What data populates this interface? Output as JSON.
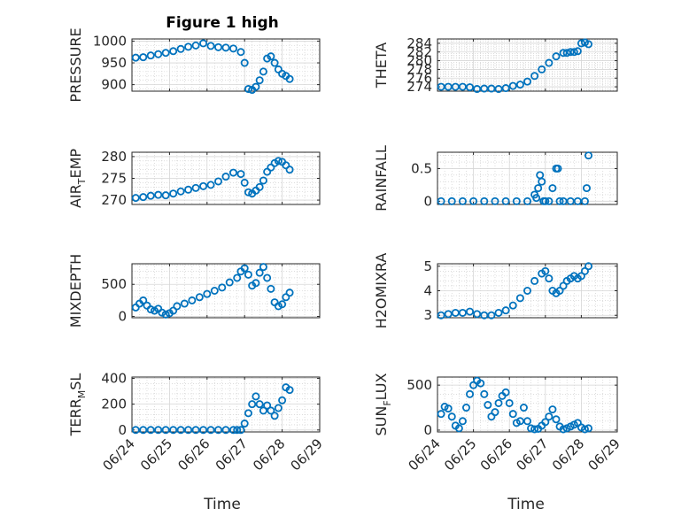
{
  "figure": {
    "title": "Figure 1 high",
    "xlabel": "Time",
    "marker_color": "#0072BD"
  },
  "chart_data": [
    {
      "type": "scatter",
      "id": "pressure",
      "ylabel": "PRESSURE",
      "xlim": [
        0,
        5
      ],
      "ylim": [
        885,
        1005
      ],
      "yticks": [
        900,
        950,
        1000
      ],
      "yticklabels": [
        "900",
        "950",
        "1000"
      ],
      "xticks": [
        0,
        1,
        2,
        3,
        4,
        5
      ],
      "xticklabels": [],
      "grid": true,
      "x": [
        0.1,
        0.3,
        0.5,
        0.7,
        0.9,
        1.1,
        1.3,
        1.5,
        1.7,
        1.9,
        2.1,
        2.3,
        2.5,
        2.7,
        2.9,
        3.0,
        3.1,
        3.2,
        3.3,
        3.4,
        3.5,
        3.6,
        3.7,
        3.8,
        3.9,
        4.0,
        4.1,
        4.2
      ],
      "y": [
        962,
        963,
        967,
        970,
        973,
        977,
        982,
        987,
        990,
        995,
        989,
        986,
        985,
        983,
        975,
        950,
        890,
        888,
        895,
        910,
        930,
        960,
        965,
        950,
        935,
        925,
        920,
        913
      ]
    },
    {
      "type": "scatter",
      "id": "theta",
      "ylabel": "THETA",
      "xlim": [
        0,
        5
      ],
      "ylim": [
        273,
        285
      ],
      "yticks": [
        274,
        276,
        278,
        280,
        282,
        284
      ],
      "yticklabels": [
        "274",
        "276",
        "278",
        "280",
        "282",
        "284"
      ],
      "xticks": [
        0,
        1,
        2,
        3,
        4,
        5
      ],
      "xticklabels": [],
      "grid": true,
      "x": [
        0.1,
        0.3,
        0.5,
        0.7,
        0.9,
        1.1,
        1.3,
        1.5,
        1.7,
        1.9,
        2.1,
        2.3,
        2.5,
        2.7,
        2.9,
        3.1,
        3.3,
        3.5,
        3.6,
        3.7,
        3.8,
        3.9,
        4.0,
        4.1,
        4.2
      ],
      "y": [
        274.0,
        274.0,
        274.0,
        274.0,
        273.9,
        273.5,
        273.6,
        273.6,
        273.5,
        273.7,
        274.2,
        274.5,
        275.2,
        276.5,
        278.0,
        279.5,
        281.0,
        281.8,
        281.8,
        282.0,
        282.0,
        282.2,
        284.0,
        284.2,
        283.8
      ]
    },
    {
      "type": "scatter",
      "id": "air_temp",
      "ylabel": "AIR_TEMP",
      "xlim": [
        0,
        5
      ],
      "ylim": [
        269,
        281
      ],
      "yticks": [
        270,
        275,
        280
      ],
      "yticklabels": [
        "270",
        "275",
        "280"
      ],
      "xticks": [
        0,
        1,
        2,
        3,
        4,
        5
      ],
      "xticklabels": [],
      "grid": true,
      "x": [
        0.1,
        0.3,
        0.5,
        0.7,
        0.9,
        1.1,
        1.3,
        1.5,
        1.7,
        1.9,
        2.1,
        2.3,
        2.5,
        2.7,
        2.9,
        3.0,
        3.1,
        3.2,
        3.3,
        3.4,
        3.5,
        3.6,
        3.7,
        3.8,
        3.9,
        4.0,
        4.1,
        4.2
      ],
      "y": [
        270.5,
        270.7,
        271.0,
        271.2,
        271.1,
        271.5,
        272.0,
        272.4,
        272.8,
        273.2,
        273.5,
        274.3,
        275.4,
        276.3,
        276.0,
        274.0,
        271.8,
        271.5,
        272.2,
        273.0,
        274.5,
        276.5,
        277.5,
        278.5,
        279.0,
        278.8,
        278.0,
        277.0
      ]
    },
    {
      "type": "scatter",
      "id": "rainfall",
      "ylabel": "RAINFALL",
      "xlim": [
        0,
        5
      ],
      "ylim": [
        -0.05,
        0.75
      ],
      "yticks": [
        0,
        0.5
      ],
      "yticklabels": [
        "0",
        "0.5"
      ],
      "xticks": [
        0,
        1,
        2,
        3,
        4,
        5
      ],
      "xticklabels": [],
      "grid": true,
      "x": [
        0.1,
        0.4,
        0.7,
        1.0,
        1.3,
        1.6,
        1.9,
        2.2,
        2.5,
        2.7,
        2.75,
        2.8,
        2.85,
        2.9,
        2.95,
        3.0,
        3.1,
        3.2,
        3.3,
        3.35,
        3.4,
        3.5,
        3.7,
        3.9,
        4.1,
        4.15,
        4.2
      ],
      "y": [
        0,
        0,
        0,
        0,
        0,
        0,
        0,
        0,
        0,
        0.1,
        0.05,
        0.2,
        0.4,
        0.3,
        0,
        0,
        0,
        0.2,
        0.5,
        0.5,
        0,
        0,
        0,
        0,
        0,
        0.2,
        0.7
      ]
    },
    {
      "type": "scatter",
      "id": "mixdepth",
      "ylabel": "MIXDEPTH",
      "xlim": [
        0,
        5
      ],
      "ylim": [
        -20,
        820
      ],
      "yticks": [
        0,
        500
      ],
      "yticklabels": [
        "0",
        "500"
      ],
      "xticks": [
        0,
        1,
        2,
        3,
        4,
        5
      ],
      "xticklabels": [],
      "grid": true,
      "x": [
        0.1,
        0.2,
        0.3,
        0.4,
        0.5,
        0.6,
        0.7,
        0.8,
        0.9,
        1.0,
        1.1,
        1.2,
        1.4,
        1.6,
        1.8,
        2.0,
        2.2,
        2.4,
        2.6,
        2.8,
        2.9,
        3.0,
        3.1,
        3.2,
        3.3,
        3.4,
        3.5,
        3.6,
        3.7,
        3.8,
        3.9,
        4.0,
        4.1,
        4.2
      ],
      "y": [
        140,
        200,
        250,
        170,
        110,
        90,
        120,
        60,
        30,
        50,
        90,
        160,
        200,
        250,
        300,
        350,
        400,
        450,
        530,
        600,
        700,
        750,
        650,
        480,
        520,
        680,
        770,
        600,
        430,
        220,
        160,
        190,
        300,
        370
      ]
    },
    {
      "type": "scatter",
      "id": "h2omixra",
      "ylabel": "H2OMIXRA",
      "xlim": [
        0,
        5
      ],
      "ylim": [
        2.9,
        5.1
      ],
      "yticks": [
        3,
        4,
        5
      ],
      "yticklabels": [
        "3",
        "4",
        "5"
      ],
      "xticks": [
        0,
        1,
        2,
        3,
        4,
        5
      ],
      "xticklabels": [],
      "grid": true,
      "x": [
        0.1,
        0.3,
        0.5,
        0.7,
        0.9,
        1.1,
        1.3,
        1.5,
        1.7,
        1.9,
        2.1,
        2.3,
        2.5,
        2.7,
        2.9,
        3.0,
        3.1,
        3.2,
        3.3,
        3.4,
        3.5,
        3.6,
        3.7,
        3.8,
        3.9,
        4.0,
        4.1,
        4.2
      ],
      "y": [
        3.0,
        3.05,
        3.1,
        3.1,
        3.15,
        3.05,
        3.0,
        3.0,
        3.1,
        3.2,
        3.4,
        3.7,
        4.0,
        4.4,
        4.7,
        4.8,
        4.5,
        4.0,
        3.9,
        4.0,
        4.2,
        4.4,
        4.5,
        4.6,
        4.5,
        4.6,
        4.8,
        5.0
      ]
    },
    {
      "type": "scatter",
      "id": "terr_msl",
      "ylabel": "TERR_MSL",
      "xlim": [
        0,
        5
      ],
      "ylim": [
        -15,
        410
      ],
      "yticks": [
        0,
        200,
        400
      ],
      "yticklabels": [
        "0",
        "200",
        "400"
      ],
      "xticks": [
        0,
        1,
        2,
        3,
        4,
        5
      ],
      "xticklabels": [
        "06/24",
        "06/25",
        "06/26",
        "06/27",
        "06/28",
        "06/29"
      ],
      "grid": true,
      "x": [
        0.1,
        0.3,
        0.5,
        0.7,
        0.9,
        1.1,
        1.3,
        1.5,
        1.7,
        1.9,
        2.1,
        2.3,
        2.5,
        2.7,
        2.8,
        2.9,
        3.0,
        3.1,
        3.2,
        3.3,
        3.4,
        3.5,
        3.6,
        3.7,
        3.8,
        3.9,
        4.0,
        4.1,
        4.2
      ],
      "y": [
        0,
        0,
        0,
        0,
        0,
        0,
        0,
        0,
        0,
        0,
        0,
        0,
        0,
        0,
        0,
        0,
        50,
        130,
        200,
        260,
        200,
        150,
        190,
        150,
        110,
        170,
        230,
        330,
        310
      ]
    },
    {
      "type": "scatter",
      "id": "sun_flux",
      "ylabel": "SUN_FLUX",
      "xlim": [
        0,
        5
      ],
      "ylim": [
        -20,
        590
      ],
      "yticks": [
        0,
        500
      ],
      "yticklabels": [
        "0",
        "500"
      ],
      "xticks": [
        0,
        1,
        2,
        3,
        4,
        5
      ],
      "xticklabels": [
        "06/24",
        "06/25",
        "06/26",
        "06/27",
        "06/28",
        "06/29"
      ],
      "grid": true,
      "x": [
        0.1,
        0.2,
        0.3,
        0.4,
        0.5,
        0.6,
        0.7,
        0.8,
        0.9,
        1.0,
        1.1,
        1.2,
        1.3,
        1.4,
        1.5,
        1.6,
        1.7,
        1.8,
        1.9,
        2.0,
        2.1,
        2.2,
        2.3,
        2.4,
        2.5,
        2.6,
        2.7,
        2.8,
        2.9,
        3.0,
        3.1,
        3.2,
        3.3,
        3.4,
        3.5,
        3.6,
        3.7,
        3.8,
        3.9,
        4.0,
        4.1,
        4.2
      ],
      "y": [
        180,
        260,
        240,
        150,
        50,
        20,
        100,
        250,
        400,
        500,
        550,
        520,
        400,
        280,
        150,
        200,
        300,
        380,
        420,
        300,
        180,
        80,
        100,
        250,
        100,
        20,
        10,
        15,
        50,
        90,
        150,
        230,
        120,
        40,
        10,
        20,
        40,
        60,
        80,
        30,
        10,
        20
      ]
    }
  ]
}
